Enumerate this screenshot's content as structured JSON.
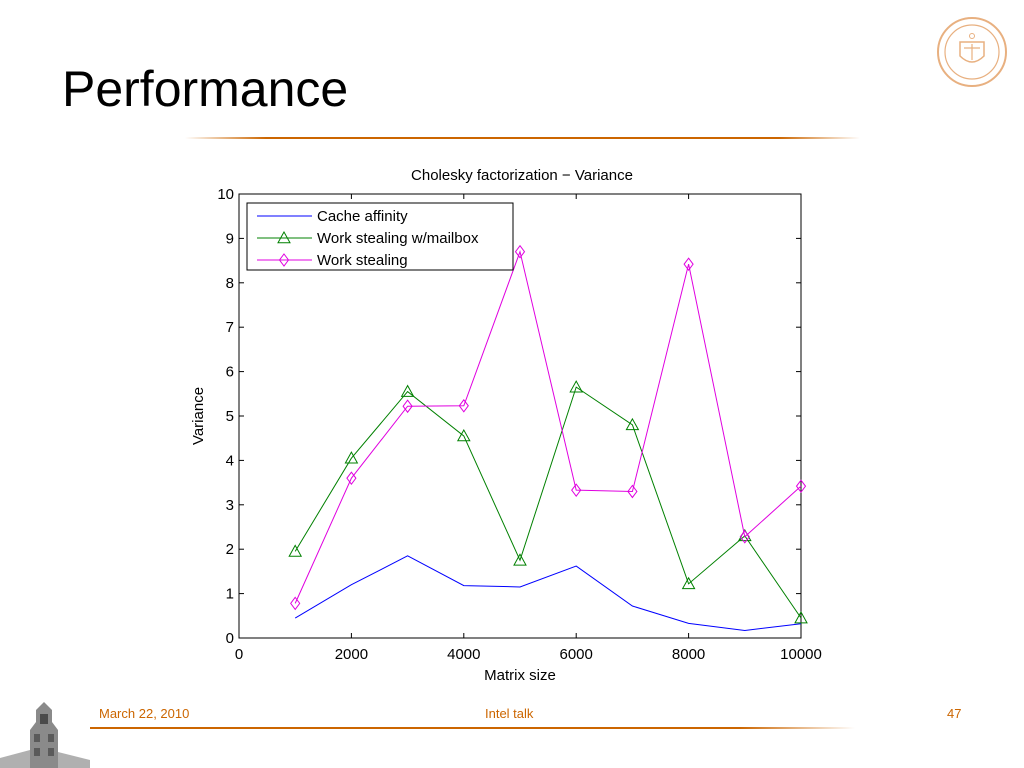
{
  "slide": {
    "title": "Performance",
    "footer_date": "March 22, 2010",
    "footer_center": "Intel talk",
    "footer_page": "47"
  },
  "colors": {
    "accent": "#cc6600",
    "cache_affinity": "#0000ff",
    "work_stealing_mailbox": "#008000",
    "work_stealing": "#e000e0"
  },
  "chart_data": {
    "type": "line",
    "title": "Cholesky factorization − Variance",
    "xlabel": "Matrix size",
    "ylabel": "Variance",
    "xlim": [
      0,
      10000
    ],
    "ylim": [
      0,
      10
    ],
    "xticks": [
      0,
      2000,
      4000,
      6000,
      8000,
      10000
    ],
    "yticks": [
      0,
      1,
      2,
      3,
      4,
      5,
      6,
      7,
      8,
      9,
      10
    ],
    "x": [
      1000,
      2000,
      3000,
      4000,
      5000,
      6000,
      7000,
      8000,
      9000,
      10000
    ],
    "grid": false,
    "legend_position": "top-left",
    "series": [
      {
        "name": "Cache affinity",
        "marker": "none",
        "color": "#0000ff",
        "values": [
          0.45,
          1.2,
          1.85,
          1.18,
          1.15,
          1.62,
          0.72,
          0.33,
          0.17,
          0.32
        ]
      },
      {
        "name": "Work stealing w/mailbox",
        "marker": "triangle",
        "color": "#008000",
        "values": [
          1.95,
          4.05,
          5.55,
          4.55,
          1.75,
          5.65,
          4.8,
          1.22,
          2.3,
          0.45
        ]
      },
      {
        "name": "Work stealing",
        "marker": "diamond",
        "color": "#e000e0",
        "values": [
          0.78,
          3.6,
          5.22,
          5.23,
          8.7,
          3.33,
          3.3,
          8.42,
          2.28,
          3.42
        ]
      }
    ]
  }
}
